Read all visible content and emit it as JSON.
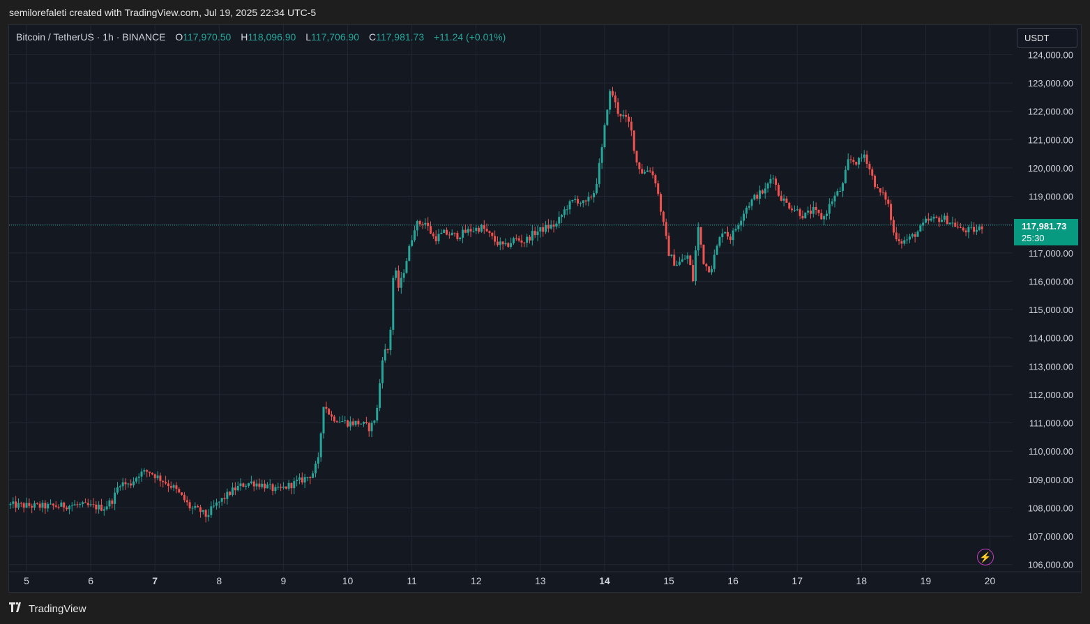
{
  "header": {
    "text": "semilorefaleti created with TradingView.com, Jul 19, 2025 22:34 UTC-5"
  },
  "legend": {
    "symbol": "Bitcoin / TetherUS · 1h · BINANCE",
    "o_label": "O",
    "o_value": "117,970.50",
    "h_label": "H",
    "h_value": "118,096.90",
    "l_label": "L",
    "l_value": "117,706.90",
    "c_label": "C",
    "c_value": "117,981.73",
    "change": "+11.24 (+0.01%)"
  },
  "currency": {
    "label": "USDT"
  },
  "last_price": {
    "price": "117,981.73",
    "countdown": "25:30"
  },
  "footer": {
    "logo": "𝟭𝟳",
    "brand": "TradingView"
  },
  "colors": {
    "up": "#26a69a",
    "down": "#ef5350",
    "grid": "#232733",
    "background": "#141821",
    "tag": "#089981",
    "accent_icon": "#c63ec1"
  },
  "icons": {
    "alert": "lightning-icon",
    "logo": "tradingview-logo-icon"
  },
  "chart_data": {
    "type": "candlestick",
    "title": "Bitcoin / TetherUS · 1h · BINANCE",
    "ylim": [
      105700,
      124300
    ],
    "y_ticks": [
      {
        "v": 124000,
        "t": "124,000.00"
      },
      {
        "v": 123000,
        "t": "123,000.00"
      },
      {
        "v": 122000,
        "t": "122,000.00"
      },
      {
        "v": 121000,
        "t": "121,000.00"
      },
      {
        "v": 120000,
        "t": "120,000.00"
      },
      {
        "v": 119000,
        "t": "119,000.00"
      },
      {
        "v": 117000,
        "t": "117,000.00"
      },
      {
        "v": 116000,
        "t": "116,000.00"
      },
      {
        "v": 115000,
        "t": "115,000.00"
      },
      {
        "v": 114000,
        "t": "114,000.00"
      },
      {
        "v": 113000,
        "t": "113,000.00"
      },
      {
        "v": 112000,
        "t": "112,000.00"
      },
      {
        "v": 111000,
        "t": "111,000.00"
      },
      {
        "v": 110000,
        "t": "110,000.00"
      },
      {
        "v": 109000,
        "t": "109,000.00"
      },
      {
        "v": 108000,
        "t": "108,000.00"
      },
      {
        "v": 107000,
        "t": "107,000.00"
      },
      {
        "v": 106000,
        "t": "106,000.00"
      }
    ],
    "x_ticks": [
      {
        "d": 5,
        "t": "5"
      },
      {
        "d": 6,
        "t": "6"
      },
      {
        "d": 7,
        "t": "7",
        "bold": true
      },
      {
        "d": 8,
        "t": "8"
      },
      {
        "d": 9,
        "t": "9"
      },
      {
        "d": 10,
        "t": "10"
      },
      {
        "d": 11,
        "t": "11"
      },
      {
        "d": 12,
        "t": "12"
      },
      {
        "d": 13,
        "t": "13"
      },
      {
        "d": 14,
        "t": "14",
        "bold": true
      },
      {
        "d": 15,
        "t": "15"
      },
      {
        "d": 16,
        "t": "16"
      },
      {
        "d": 17,
        "t": "17"
      },
      {
        "d": 18,
        "t": "18"
      },
      {
        "d": 19,
        "t": "19"
      },
      {
        "d": 20,
        "t": "20"
      }
    ],
    "x_unit": "day of July 2025",
    "last_price": 117981.73,
    "path_points": [
      [
        4.75,
        108100
      ],
      [
        5.3,
        108050
      ],
      [
        5.8,
        108100
      ],
      [
        6.2,
        108000
      ],
      [
        6.35,
        108300
      ],
      [
        6.45,
        108900
      ],
      [
        6.6,
        108800
      ],
      [
        6.75,
        109200
      ],
      [
        6.9,
        109300
      ],
      [
        7.1,
        109000
      ],
      [
        7.3,
        108700
      ],
      [
        7.45,
        108300
      ],
      [
        7.55,
        108000
      ],
      [
        7.7,
        107900
      ],
      [
        7.8,
        107700
      ],
      [
        7.9,
        108000
      ],
      [
        8.05,
        108300
      ],
      [
        8.2,
        108600
      ],
      [
        8.35,
        108800
      ],
      [
        8.5,
        108900
      ],
      [
        8.7,
        108800
      ],
      [
        8.9,
        108600
      ],
      [
        9.1,
        108800
      ],
      [
        9.3,
        109000
      ],
      [
        9.45,
        109200
      ],
      [
        9.55,
        109700
      ],
      [
        9.62,
        111700
      ],
      [
        9.75,
        111200
      ],
      [
        10.0,
        111000
      ],
      [
        10.2,
        111000
      ],
      [
        10.35,
        110800
      ],
      [
        10.45,
        111300
      ],
      [
        10.55,
        113500
      ],
      [
        10.65,
        113600
      ],
      [
        10.72,
        116600
      ],
      [
        10.8,
        115700
      ],
      [
        10.92,
        116800
      ],
      [
        11.05,
        118000
      ],
      [
        11.2,
        118100
      ],
      [
        11.35,
        117500
      ],
      [
        11.5,
        117700
      ],
      [
        11.7,
        117600
      ],
      [
        11.9,
        117800
      ],
      [
        12.1,
        117900
      ],
      [
        12.3,
        117400
      ],
      [
        12.45,
        117200
      ],
      [
        12.6,
        117500
      ],
      [
        12.75,
        117400
      ],
      [
        12.9,
        117700
      ],
      [
        13.1,
        117900
      ],
      [
        13.25,
        118000
      ],
      [
        13.4,
        118600
      ],
      [
        13.55,
        118900
      ],
      [
        13.7,
        118700
      ],
      [
        13.85,
        119200
      ],
      [
        13.95,
        120500
      ],
      [
        14.05,
        122300
      ],
      [
        14.1,
        122800
      ],
      [
        14.2,
        122000
      ],
      [
        14.3,
        121800
      ],
      [
        14.4,
        121500
      ],
      [
        14.5,
        120200
      ],
      [
        14.6,
        119800
      ],
      [
        14.7,
        120000
      ],
      [
        14.8,
        119500
      ],
      [
        14.9,
        118200
      ],
      [
        15.0,
        117000
      ],
      [
        15.1,
        116600
      ],
      [
        15.2,
        116700
      ],
      [
        15.3,
        116900
      ],
      [
        15.38,
        116000
      ],
      [
        15.45,
        118000
      ],
      [
        15.55,
        116600
      ],
      [
        15.65,
        116400
      ],
      [
        15.75,
        117200
      ],
      [
        15.85,
        117900
      ],
      [
        15.95,
        117500
      ],
      [
        16.05,
        117900
      ],
      [
        16.2,
        118600
      ],
      [
        16.35,
        119000
      ],
      [
        16.5,
        119200
      ],
      [
        16.62,
        119800
      ],
      [
        16.7,
        119100
      ],
      [
        16.85,
        118700
      ],
      [
        17.0,
        118500
      ],
      [
        17.1,
        118300
      ],
      [
        17.25,
        118500
      ],
      [
        17.4,
        118200
      ],
      [
        17.55,
        118900
      ],
      [
        17.7,
        119300
      ],
      [
        17.8,
        120300
      ],
      [
        17.95,
        120200
      ],
      [
        18.05,
        120500
      ],
      [
        18.15,
        119800
      ],
      [
        18.25,
        119200
      ],
      [
        18.4,
        118900
      ],
      [
        18.5,
        117700
      ],
      [
        18.62,
        117400
      ],
      [
        18.75,
        117500
      ],
      [
        18.9,
        117800
      ],
      [
        19.0,
        118100
      ],
      [
        19.15,
        118200
      ],
      [
        19.3,
        118200
      ],
      [
        19.45,
        118000
      ],
      [
        19.55,
        117800
      ],
      [
        19.7,
        117800
      ],
      [
        19.8,
        117800
      ],
      [
        19.9,
        117980
      ]
    ],
    "candle_interval_days": 0.04167
  }
}
